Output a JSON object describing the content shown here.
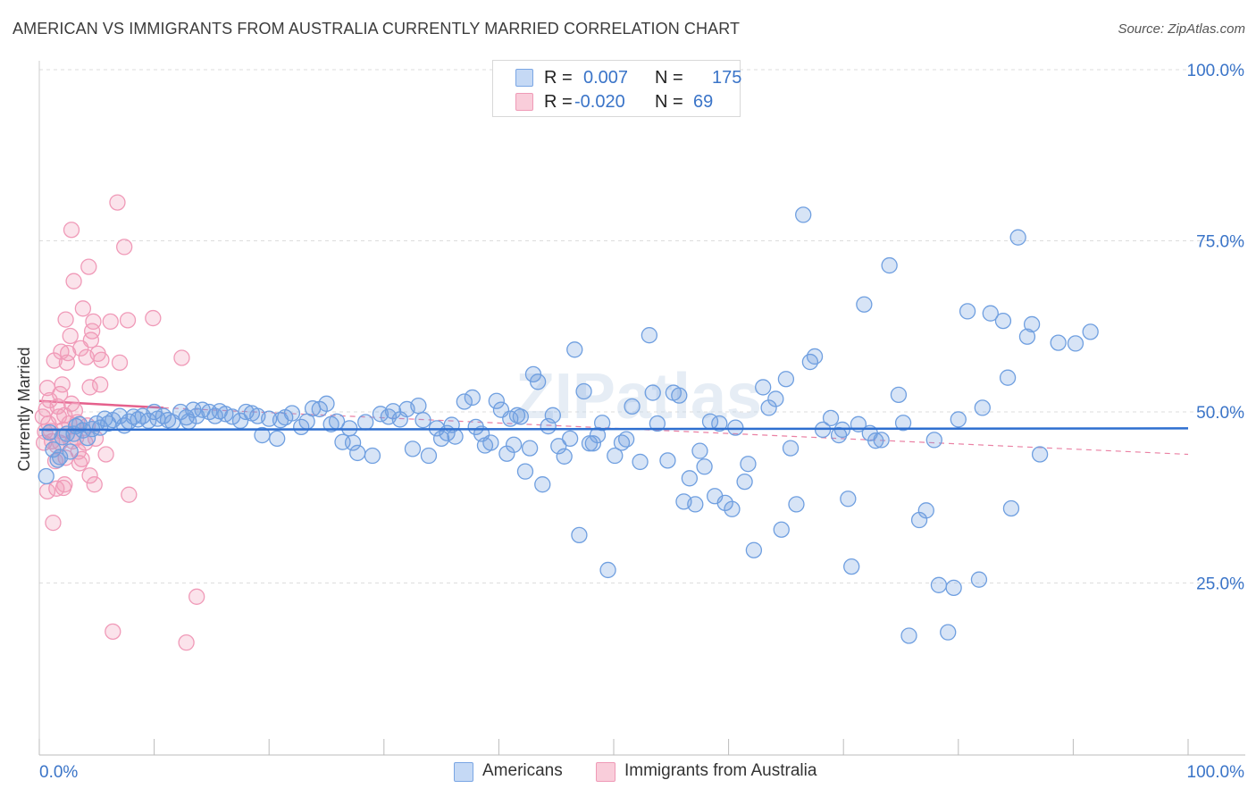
{
  "title": "AMERICAN VS IMMIGRANTS FROM AUSTRALIA CURRENTLY MARRIED CORRELATION CHART",
  "source": "Source: ZipAtlas.com",
  "watermark": "ZIPatlas",
  "colors": {
    "americans": "#6f9fe0",
    "immigrants": "#f09ab8",
    "americans_line": "#2e6fd0",
    "immigrants_line": "#e5608c",
    "tick_label": "#3a74c8"
  },
  "legend": {
    "r_label": "R =",
    "n_label": "N =",
    "americans": {
      "r": "0.007",
      "n": "175"
    },
    "immigrants": {
      "r": "-0.020",
      "n": "69"
    }
  },
  "bottom_legend": {
    "americans": "Americans",
    "immigrants": "Immigrants from Australia"
  },
  "chart_data": {
    "type": "scatter",
    "xlabel": "",
    "ylabel": "Currently Married",
    "xlim": [
      0,
      100
    ],
    "ylim": [
      0,
      100
    ],
    "x_tick_labels": [
      "0.0%",
      "100.0%"
    ],
    "y_ticks": [
      25,
      50,
      75,
      100
    ],
    "y_tick_labels": [
      "25.0%",
      "50.0%",
      "75.0%",
      "100.0%"
    ],
    "grid": true,
    "legend_position": "top-center",
    "series": [
      {
        "name": "Americans",
        "trend": {
          "x": [
            0,
            100
          ],
          "y": [
            47.4,
            47.6
          ]
        },
        "points": [
          [
            0.6,
            40.6
          ],
          [
            0.9,
            47
          ],
          [
            1.2,
            44.5
          ],
          [
            1.6,
            43
          ],
          [
            1.8,
            43.4
          ],
          [
            2,
            46.3
          ],
          [
            2.4,
            46.8
          ],
          [
            2.7,
            44.2
          ],
          [
            3,
            46.8
          ],
          [
            3.2,
            47.9
          ],
          [
            3.5,
            48.2
          ],
          [
            3.8,
            47.3
          ],
          [
            4.2,
            46.2
          ],
          [
            4.6,
            47.5
          ],
          [
            5,
            48.3
          ],
          [
            5.3,
            47.7
          ],
          [
            5.7,
            49
          ],
          [
            6,
            48.3
          ],
          [
            6.4,
            48.8
          ],
          [
            7,
            49.4
          ],
          [
            7.4,
            48
          ],
          [
            7.8,
            48.6
          ],
          [
            8.2,
            49.3
          ],
          [
            8.6,
            48.9
          ],
          [
            9,
            49.4
          ],
          [
            9.5,
            48.7
          ],
          [
            10,
            50
          ],
          [
            10.3,
            49
          ],
          [
            10.8,
            49.4
          ],
          [
            11.2,
            48.8
          ],
          [
            11.6,
            48.5
          ],
          [
            12.3,
            50
          ],
          [
            12.8,
            49.2
          ],
          [
            13,
            48.6
          ],
          [
            13.4,
            50.3
          ],
          [
            13.7,
            49.4
          ],
          [
            14.2,
            50.3
          ],
          [
            14.8,
            50
          ],
          [
            15.3,
            49.4
          ],
          [
            15.7,
            50.1
          ],
          [
            16.2,
            49.7
          ],
          [
            16.8,
            49.3
          ],
          [
            17.5,
            48.7
          ],
          [
            18,
            50
          ],
          [
            18.5,
            49.8
          ],
          [
            19,
            49.4
          ],
          [
            19.4,
            46.6
          ],
          [
            20,
            49
          ],
          [
            20.7,
            46.1
          ],
          [
            21,
            48.8
          ],
          [
            21.4,
            49.2
          ],
          [
            22,
            49.8
          ],
          [
            22.8,
            47.8
          ],
          [
            23.3,
            48.6
          ],
          [
            23.8,
            50.5
          ],
          [
            24.4,
            50.4
          ],
          [
            25,
            51.2
          ],
          [
            25.4,
            48.2
          ],
          [
            25.9,
            48.6
          ],
          [
            26.4,
            45.6
          ],
          [
            27,
            47.6
          ],
          [
            27.3,
            45.5
          ],
          [
            27.7,
            44
          ],
          [
            28.4,
            48.5
          ],
          [
            29,
            43.6
          ],
          [
            29.7,
            49.7
          ],
          [
            30.4,
            49.3
          ],
          [
            30.8,
            50.1
          ],
          [
            31.4,
            48.9
          ],
          [
            32,
            50.4
          ],
          [
            32.5,
            44.6
          ],
          [
            33,
            50.9
          ],
          [
            33.4,
            48.8
          ],
          [
            33.9,
            43.6
          ],
          [
            34.6,
            47.6
          ],
          [
            35,
            46.1
          ],
          [
            35.5,
            46.9
          ],
          [
            35.9,
            48.1
          ],
          [
            36.2,
            46.4
          ],
          [
            37,
            51.5
          ],
          [
            37.7,
            52.1
          ],
          [
            38,
            47.8
          ],
          [
            38.5,
            46.8
          ],
          [
            38.8,
            45.1
          ],
          [
            39.3,
            45.5
          ],
          [
            39.8,
            51.6
          ],
          [
            40.2,
            50.3
          ],
          [
            40.7,
            43.9
          ],
          [
            41,
            49
          ],
          [
            41.3,
            45.2
          ],
          [
            41.6,
            49.5
          ],
          [
            41.9,
            49.3
          ],
          [
            42.3,
            41.3
          ],
          [
            42.7,
            44.7
          ],
          [
            43,
            55.5
          ],
          [
            43.4,
            54.4
          ],
          [
            43.8,
            39.4
          ],
          [
            44.3,
            47.9
          ],
          [
            44.7,
            49.5
          ],
          [
            45.2,
            45
          ],
          [
            45.7,
            43.5
          ],
          [
            46.2,
            46.1
          ],
          [
            46.6,
            59.1
          ],
          [
            47,
            32
          ],
          [
            47.4,
            53
          ],
          [
            47.9,
            45.4
          ],
          [
            48.2,
            45.4
          ],
          [
            48.6,
            46.6
          ],
          [
            49,
            48.4
          ],
          [
            49.5,
            26.9
          ],
          [
            50.1,
            43.6
          ],
          [
            50.7,
            45.5
          ],
          [
            51.1,
            46
          ],
          [
            51.6,
            50.8
          ],
          [
            52.3,
            42.7
          ],
          [
            53.1,
            61.2
          ],
          [
            53.4,
            52.8
          ],
          [
            53.8,
            48.3
          ],
          [
            54.7,
            42.9
          ],
          [
            55.2,
            52.8
          ],
          [
            55.7,
            52.4
          ],
          [
            56.1,
            36.9
          ],
          [
            56.6,
            40.3
          ],
          [
            57.1,
            36.5
          ],
          [
            57.5,
            44.3
          ],
          [
            57.9,
            42
          ],
          [
            58.4,
            48.6
          ],
          [
            58.8,
            37.7
          ],
          [
            59.2,
            48.3
          ],
          [
            59.7,
            36.7
          ],
          [
            60.3,
            35.8
          ],
          [
            60.6,
            47.7
          ],
          [
            61.4,
            39.8
          ],
          [
            61.7,
            42.4
          ],
          [
            62.2,
            29.8
          ],
          [
            63,
            53.6
          ],
          [
            63.5,
            50.6
          ],
          [
            64.1,
            51.9
          ],
          [
            64.6,
            32.8
          ],
          [
            65,
            54.8
          ],
          [
            65.4,
            44.7
          ],
          [
            65.9,
            36.5
          ],
          [
            66.5,
            78.8
          ],
          [
            67.1,
            57.3
          ],
          [
            67.5,
            58.1
          ],
          [
            68.2,
            47.4
          ],
          [
            68.9,
            49.1
          ],
          [
            69.6,
            46.6
          ],
          [
            69.9,
            47.4
          ],
          [
            70.4,
            37.3
          ],
          [
            70.7,
            27.4
          ],
          [
            71.3,
            48.2
          ],
          [
            71.8,
            65.7
          ],
          [
            72.3,
            46.9
          ],
          [
            72.8,
            45.8
          ],
          [
            73.3,
            45.9
          ],
          [
            74,
            71.4
          ],
          [
            74.8,
            52.5
          ],
          [
            75.2,
            48.4
          ],
          [
            75.7,
            17.3
          ],
          [
            76.6,
            34.2
          ],
          [
            77.2,
            35.6
          ],
          [
            77.9,
            45.9
          ],
          [
            78.3,
            24.7
          ],
          [
            79.1,
            17.8
          ],
          [
            79.6,
            24.3
          ],
          [
            80,
            48.9
          ],
          [
            80.8,
            64.7
          ],
          [
            81.8,
            25.5
          ],
          [
            82.1,
            50.6
          ],
          [
            82.8,
            64.4
          ],
          [
            83.9,
            63.3
          ],
          [
            84.3,
            55
          ],
          [
            84.6,
            35.9
          ],
          [
            85.2,
            75.5
          ],
          [
            86,
            61
          ],
          [
            86.4,
            62.8
          ],
          [
            87.1,
            43.8
          ],
          [
            88.7,
            60.1
          ],
          [
            90.2,
            60
          ],
          [
            91.5,
            61.7
          ]
        ]
      },
      {
        "name": "Immigrants from Australia",
        "trend": {
          "x": [
            0,
            10.8
          ],
          "y": [
            51.6,
            50.6
          ]
        },
        "trend_extension": {
          "x": [
            10.8,
            100
          ],
          "y": [
            50.6,
            43.8
          ]
        },
        "points": [
          [
            0.3,
            49.3
          ],
          [
            0.4,
            45.5
          ],
          [
            0.5,
            47.1
          ],
          [
            0.6,
            50.4
          ],
          [
            0.7,
            53.5
          ],
          [
            0.7,
            38.4
          ],
          [
            0.8,
            48.3
          ],
          [
            0.9,
            51.7
          ],
          [
            1,
            47.2
          ],
          [
            1.1,
            45.7
          ],
          [
            1.2,
            33.8
          ],
          [
            1.3,
            57.5
          ],
          [
            1.4,
            42.8
          ],
          [
            1.5,
            45.1
          ],
          [
            1.5,
            38.8
          ],
          [
            1.6,
            50.8
          ],
          [
            1.7,
            49.3
          ],
          [
            1.8,
            52.6
          ],
          [
            1.8,
            45.5
          ],
          [
            1.9,
            58.8
          ],
          [
            2,
            54
          ],
          [
            2.1,
            47.4
          ],
          [
            2.1,
            38.9
          ],
          [
            2.2,
            49.5
          ],
          [
            2.2,
            39.4
          ],
          [
            2.3,
            63.5
          ],
          [
            2.3,
            43.3
          ],
          [
            2.4,
            57.2
          ],
          [
            2.5,
            58.6
          ],
          [
            2.6,
            48.3
          ],
          [
            2.7,
            61.1
          ],
          [
            2.8,
            76.6
          ],
          [
            2.8,
            51.2
          ],
          [
            2.9,
            45.7
          ],
          [
            3,
            69.1
          ],
          [
            3.1,
            50.2
          ],
          [
            3.2,
            46.2
          ],
          [
            3.3,
            48.5
          ],
          [
            3.4,
            44.2
          ],
          [
            3.5,
            42.5
          ],
          [
            3.6,
            59.3
          ],
          [
            3.7,
            43.1
          ],
          [
            3.8,
            65.1
          ],
          [
            4,
            45.5
          ],
          [
            4.1,
            58
          ],
          [
            4.2,
            48
          ],
          [
            4.3,
            71.2
          ],
          [
            4.4,
            53.6
          ],
          [
            4.4,
            40.7
          ],
          [
            4.5,
            60.5
          ],
          [
            4.6,
            61.8
          ],
          [
            4.7,
            63.2
          ],
          [
            4.8,
            39.4
          ],
          [
            4.9,
            46.1
          ],
          [
            5.1,
            58.5
          ],
          [
            5.3,
            54
          ],
          [
            5.4,
            57.6
          ],
          [
            5.8,
            43.8
          ],
          [
            6.2,
            63.2
          ],
          [
            6.4,
            17.9
          ],
          [
            6.8,
            80.6
          ],
          [
            7,
            57.2
          ],
          [
            7.4,
            74.1
          ],
          [
            7.7,
            63.4
          ],
          [
            7.8,
            37.9
          ],
          [
            9.9,
            63.7
          ],
          [
            12.4,
            57.9
          ],
          [
            12.8,
            16.3
          ],
          [
            13.7,
            23
          ]
        ]
      }
    ]
  }
}
